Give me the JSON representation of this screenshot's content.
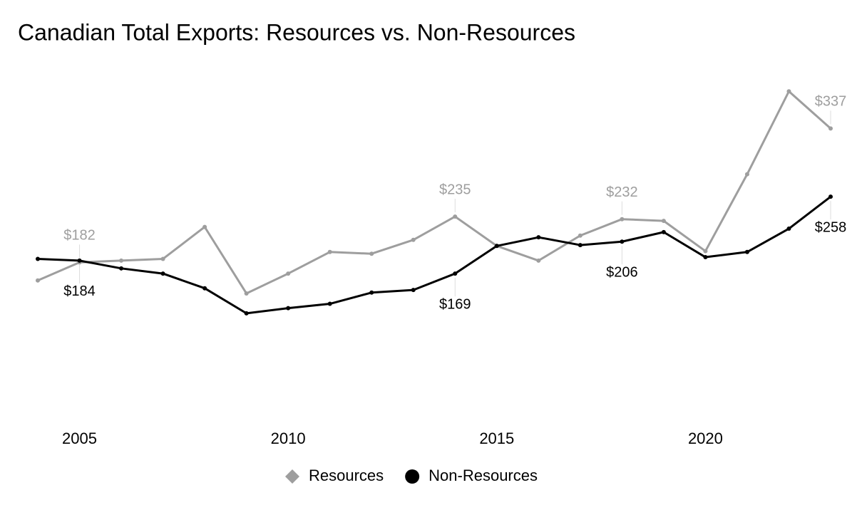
{
  "chart_data": {
    "type": "line",
    "title": "Canadian Total Exports: Resources vs. Non-Resources",
    "x": [
      2004,
      2005,
      2006,
      2007,
      2008,
      2009,
      2010,
      2011,
      2012,
      2013,
      2014,
      2015,
      2016,
      2017,
      2018,
      2019,
      2020,
      2021,
      2022,
      2023
    ],
    "xlim": [
      2004,
      2023
    ],
    "xticks": [
      2005,
      2010,
      2015,
      2020
    ],
    "ylim": [
      0,
      400
    ],
    "legend": "bottom",
    "series": [
      {
        "name": "Resources",
        "color": "#9e9e9e",
        "marker": "diamond",
        "label_side": "above",
        "values": [
          161,
          182,
          184,
          186,
          223,
          146,
          169,
          194,
          192,
          208,
          235,
          201,
          184,
          213,
          232,
          230,
          195,
          284,
          380,
          337
        ],
        "value_labels": [
          null,
          "$182",
          null,
          null,
          null,
          null,
          null,
          null,
          null,
          null,
          "$235",
          null,
          null,
          null,
          "$232",
          null,
          null,
          null,
          null,
          "$337"
        ]
      },
      {
        "name": "Non-Resources",
        "color": "#000000",
        "marker": "circle",
        "label_side": "below",
        "values": [
          186,
          184,
          175,
          169,
          152,
          123,
          129,
          134,
          147,
          150,
          169,
          201,
          211,
          202,
          206,
          217,
          188,
          194,
          221,
          258
        ],
        "value_labels": [
          null,
          "$184",
          null,
          null,
          null,
          null,
          null,
          null,
          null,
          null,
          "$169",
          null,
          null,
          null,
          "$206",
          null,
          null,
          null,
          null,
          "$258"
        ]
      }
    ]
  }
}
